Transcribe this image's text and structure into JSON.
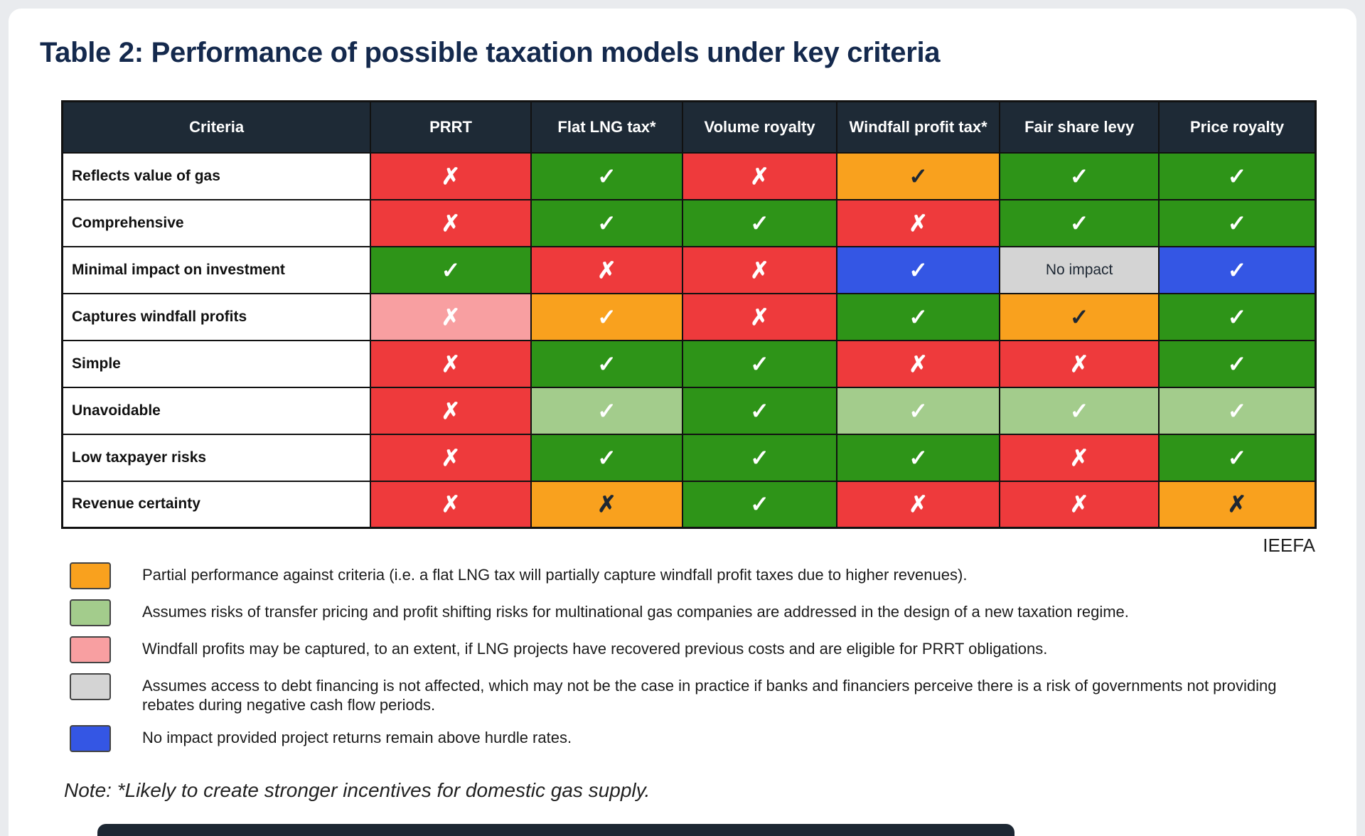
{
  "page": {
    "title": "Table 2: Performance of possible taxation models under key criteria",
    "attribution": "IEEFA",
    "note": "Note: *Likely to create stronger incentives for domestic gas supply."
  },
  "palette": {
    "red": "#ee3a3c",
    "green": "#2e9418",
    "orange": "#f9a11e",
    "blue": "#3456e4",
    "light_green": "#a3cc8c",
    "pink": "#f89fa1",
    "gray": "#d4d4d4",
    "header_bg": "#1e2a36",
    "dark_mark": "#1d2733",
    "white_mark": "#ffffff"
  },
  "marks": {
    "check": "✓",
    "cross": "✗"
  },
  "table": {
    "columns": [
      "Criteria",
      "PRRT",
      "Flat LNG tax*",
      "Volume royalty",
      "Windfall profit tax*",
      "Fair share levy",
      "Price royalty"
    ],
    "rows": [
      {
        "criteria": "Reflects value of gas",
        "cells": [
          {
            "bg": "red",
            "mark": "cross",
            "ink": "white"
          },
          {
            "bg": "green",
            "mark": "check",
            "ink": "white"
          },
          {
            "bg": "red",
            "mark": "cross",
            "ink": "white"
          },
          {
            "bg": "orange",
            "mark": "check",
            "ink": "dark"
          },
          {
            "bg": "green",
            "mark": "check",
            "ink": "white"
          },
          {
            "bg": "green",
            "mark": "check",
            "ink": "white"
          }
        ]
      },
      {
        "criteria": "Comprehensive",
        "cells": [
          {
            "bg": "red",
            "mark": "cross",
            "ink": "white"
          },
          {
            "bg": "green",
            "mark": "check",
            "ink": "white"
          },
          {
            "bg": "green",
            "mark": "check",
            "ink": "white"
          },
          {
            "bg": "red",
            "mark": "cross",
            "ink": "white"
          },
          {
            "bg": "green",
            "mark": "check",
            "ink": "white"
          },
          {
            "bg": "green",
            "mark": "check",
            "ink": "white"
          }
        ]
      },
      {
        "criteria": "Minimal impact on investment",
        "cells": [
          {
            "bg": "green",
            "mark": "check",
            "ink": "white"
          },
          {
            "bg": "red",
            "mark": "cross",
            "ink": "white"
          },
          {
            "bg": "red",
            "mark": "cross",
            "ink": "white"
          },
          {
            "bg": "blue",
            "mark": "check",
            "ink": "white"
          },
          {
            "bg": "gray",
            "mark": "text",
            "text": "No impact",
            "ink": "dark"
          },
          {
            "bg": "blue",
            "mark": "check",
            "ink": "white"
          }
        ]
      },
      {
        "criteria": "Captures windfall profits",
        "cells": [
          {
            "bg": "pink",
            "mark": "cross",
            "ink": "white"
          },
          {
            "bg": "orange",
            "mark": "check",
            "ink": "white"
          },
          {
            "bg": "red",
            "mark": "cross",
            "ink": "white"
          },
          {
            "bg": "green",
            "mark": "check",
            "ink": "white"
          },
          {
            "bg": "orange",
            "mark": "check",
            "ink": "dark"
          },
          {
            "bg": "green",
            "mark": "check",
            "ink": "white"
          }
        ]
      },
      {
        "criteria": "Simple",
        "cells": [
          {
            "bg": "red",
            "mark": "cross",
            "ink": "white"
          },
          {
            "bg": "green",
            "mark": "check",
            "ink": "white"
          },
          {
            "bg": "green",
            "mark": "check",
            "ink": "white"
          },
          {
            "bg": "red",
            "mark": "cross",
            "ink": "white"
          },
          {
            "bg": "red",
            "mark": "cross",
            "ink": "white"
          },
          {
            "bg": "green",
            "mark": "check",
            "ink": "white"
          }
        ]
      },
      {
        "criteria": "Unavoidable",
        "cells": [
          {
            "bg": "red",
            "mark": "cross",
            "ink": "white"
          },
          {
            "bg": "light_green",
            "mark": "check",
            "ink": "white"
          },
          {
            "bg": "green",
            "mark": "check",
            "ink": "white"
          },
          {
            "bg": "light_green",
            "mark": "check",
            "ink": "white"
          },
          {
            "bg": "light_green",
            "mark": "check",
            "ink": "white"
          },
          {
            "bg": "light_green",
            "mark": "check",
            "ink": "white"
          }
        ]
      },
      {
        "criteria": "Low taxpayer risks",
        "cells": [
          {
            "bg": "red",
            "mark": "cross",
            "ink": "white"
          },
          {
            "bg": "green",
            "mark": "check",
            "ink": "white"
          },
          {
            "bg": "green",
            "mark": "check",
            "ink": "white"
          },
          {
            "bg": "green",
            "mark": "check",
            "ink": "white"
          },
          {
            "bg": "red",
            "mark": "cross",
            "ink": "white"
          },
          {
            "bg": "green",
            "mark": "check",
            "ink": "white"
          }
        ]
      },
      {
        "criteria": "Revenue certainty",
        "cells": [
          {
            "bg": "red",
            "mark": "cross",
            "ink": "white"
          },
          {
            "bg": "orange",
            "mark": "cross",
            "ink": "dark"
          },
          {
            "bg": "green",
            "mark": "check",
            "ink": "white"
          },
          {
            "bg": "red",
            "mark": "cross",
            "ink": "white"
          },
          {
            "bg": "red",
            "mark": "cross",
            "ink": "white"
          },
          {
            "bg": "orange",
            "mark": "cross",
            "ink": "dark"
          }
        ]
      }
    ]
  },
  "legend": [
    {
      "swatch": "orange",
      "text": "Partial performance against criteria (i.e. a flat LNG tax will partially capture windfall profit taxes due to higher revenues)."
    },
    {
      "swatch": "light_green",
      "text": "Assumes risks of transfer pricing and profit shifting risks for multinational gas companies are addressed in the design of a new taxation regime."
    },
    {
      "swatch": "pink",
      "text": "Windfall profits may be captured, to an extent, if LNG projects have recovered previous costs and are eligible for PRRT obligations."
    },
    {
      "swatch": "gray",
      "text": "Assumes access to debt financing is not affected, which may not be the case in practice if banks and financiers perceive there is a risk of governments not providing rebates during negative cash flow periods."
    },
    {
      "swatch": "blue",
      "text": "No impact provided project returns remain above hurdle rates."
    }
  ]
}
